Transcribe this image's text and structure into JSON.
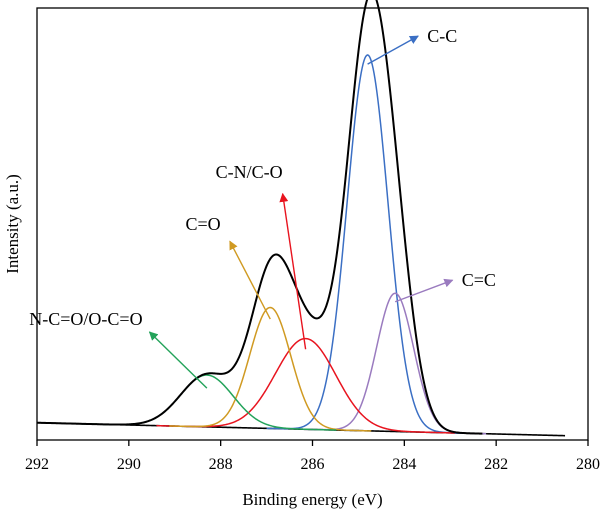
{
  "chart_data": {
    "type": "line",
    "title": "",
    "xlabel": "Binding energy (eV)",
    "ylabel": "Intensity (a.u.)",
    "xlim": [
      292,
      280
    ],
    "ylim": [
      0,
      100
    ],
    "x_reversed": true,
    "xticks": [
      292,
      290,
      288,
      286,
      284,
      282,
      280
    ],
    "xtick_labels": [
      "292",
      "290",
      "288",
      "286",
      "284",
      "282",
      "280"
    ],
    "yticks_shown": false,
    "grid": false,
    "legend": "none",
    "baseline": {
      "color": "#000000",
      "x_start": 292,
      "x_end": 280.5,
      "y_start": 4.0,
      "y_end": 1.0
    },
    "envelope": {
      "name": "",
      "color": "#000000",
      "x_start": 292,
      "x_end": 282.3
    },
    "series": [
      {
        "label": "C-C",
        "color": "#3b6fc4",
        "center": 284.8,
        "height": 87,
        "fwhm": 1.05
      },
      {
        "label": "C=C",
        "color": "#9a7bbf",
        "center": 284.2,
        "height": 32,
        "fwhm": 0.95
      },
      {
        "label": "C-N/C-O",
        "color": "#e8141f",
        "center": 286.15,
        "height": 21,
        "fwhm": 1.55
      },
      {
        "label": "C=O",
        "color": "#d09a22",
        "center": 286.92,
        "height": 28,
        "fwhm": 1.05
      },
      {
        "label": "N-C=O/O-C=O",
        "color": "#23a35a",
        "center": 288.3,
        "height": 12,
        "fwhm": 1.35
      }
    ],
    "annotations": [
      {
        "text": "C-C",
        "series": "C-C",
        "color": "#3b6fc4",
        "arrow_from": [
          284.8,
          87
        ],
        "arrow_to": [
          283.7,
          93.5
        ],
        "text_at": [
          283.5,
          93.5
        ]
      },
      {
        "text": "C-N/C-O",
        "series": "C-N/C-O",
        "color": "#e8141f",
        "arrow_from": [
          286.15,
          21
        ],
        "arrow_to": [
          286.65,
          57
        ],
        "text_at": [
          286.65,
          62
        ]
      },
      {
        "text": "C=O",
        "series": "C=O",
        "color": "#d09a22",
        "arrow_from": [
          286.92,
          28
        ],
        "arrow_to": [
          287.8,
          46
        ],
        "text_at": [
          288.0,
          50
        ]
      },
      {
        "text": "N-C=O/O-C=O",
        "series": "N-C=O/O-C=O",
        "color": "#23a35a",
        "arrow_from": [
          288.3,
          12
        ],
        "arrow_to": [
          289.55,
          25
        ],
        "text_at": [
          289.7,
          28
        ]
      },
      {
        "text": "C=C",
        "series": "C=C",
        "color": "#9a7bbf",
        "arrow_from": [
          284.2,
          32
        ],
        "arrow_to": [
          282.95,
          37
        ],
        "text_at": [
          282.75,
          37
        ]
      }
    ]
  }
}
